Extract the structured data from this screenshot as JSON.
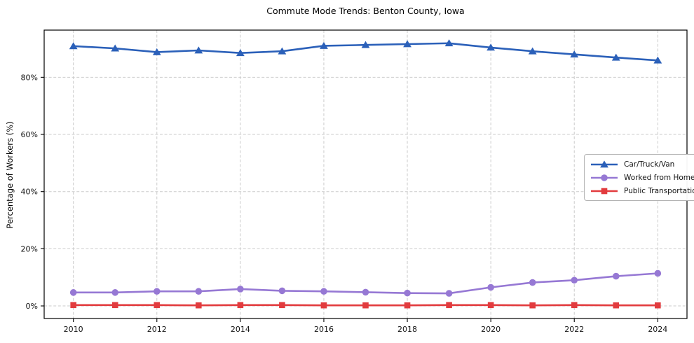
{
  "chart_data": {
    "type": "line",
    "title": "Commute Mode Trends: Benton County, Iowa",
    "xlabel": "",
    "ylabel": "Percentage of Workers (%)",
    "x": [
      2010,
      2011,
      2012,
      2013,
      2014,
      2015,
      2016,
      2017,
      2018,
      2019,
      2020,
      2021,
      2022,
      2023,
      2024
    ],
    "series": [
      {
        "name": "Car/Truck/Van",
        "marker": "triangle",
        "color": "#2b60b9",
        "values": [
          90.9,
          90.1,
          88.8,
          89.4,
          88.5,
          89.1,
          91.0,
          91.3,
          91.6,
          91.9,
          90.4,
          89.1,
          88.0,
          86.9,
          85.9
        ]
      },
      {
        "name": "Worked from Home",
        "marker": "circle",
        "color": "#9678d4",
        "values": [
          4.7,
          4.7,
          5.1,
          5.1,
          5.9,
          5.3,
          5.1,
          4.8,
          4.5,
          4.4,
          6.5,
          8.2,
          9.0,
          10.4,
          11.4
        ]
      },
      {
        "name": "Public Transportation",
        "marker": "square",
        "color": "#e23b3e",
        "values": [
          0.3,
          0.3,
          0.3,
          0.2,
          0.3,
          0.3,
          0.2,
          0.2,
          0.2,
          0.3,
          0.3,
          0.2,
          0.3,
          0.2,
          0.2
        ]
      }
    ],
    "xlim": [
      2009.3,
      2024.7
    ],
    "ylim": [
      -4.4,
      96.5
    ],
    "xticks": [
      2010,
      2012,
      2014,
      2016,
      2018,
      2020,
      2022,
      2024
    ],
    "xtick_labels": [
      "2010",
      "2012",
      "2014",
      "2016",
      "2018",
      "2020",
      "2022",
      "2024"
    ],
    "yticks": [
      0,
      20,
      40,
      60,
      80
    ],
    "ytick_labels": [
      "0%",
      "20%",
      "40%",
      "60%",
      "80%"
    ],
    "grid": "dashed-both-axes",
    "grid_color": "#cbcbcb",
    "background": "#ffffff",
    "legend_position": "center-right"
  }
}
